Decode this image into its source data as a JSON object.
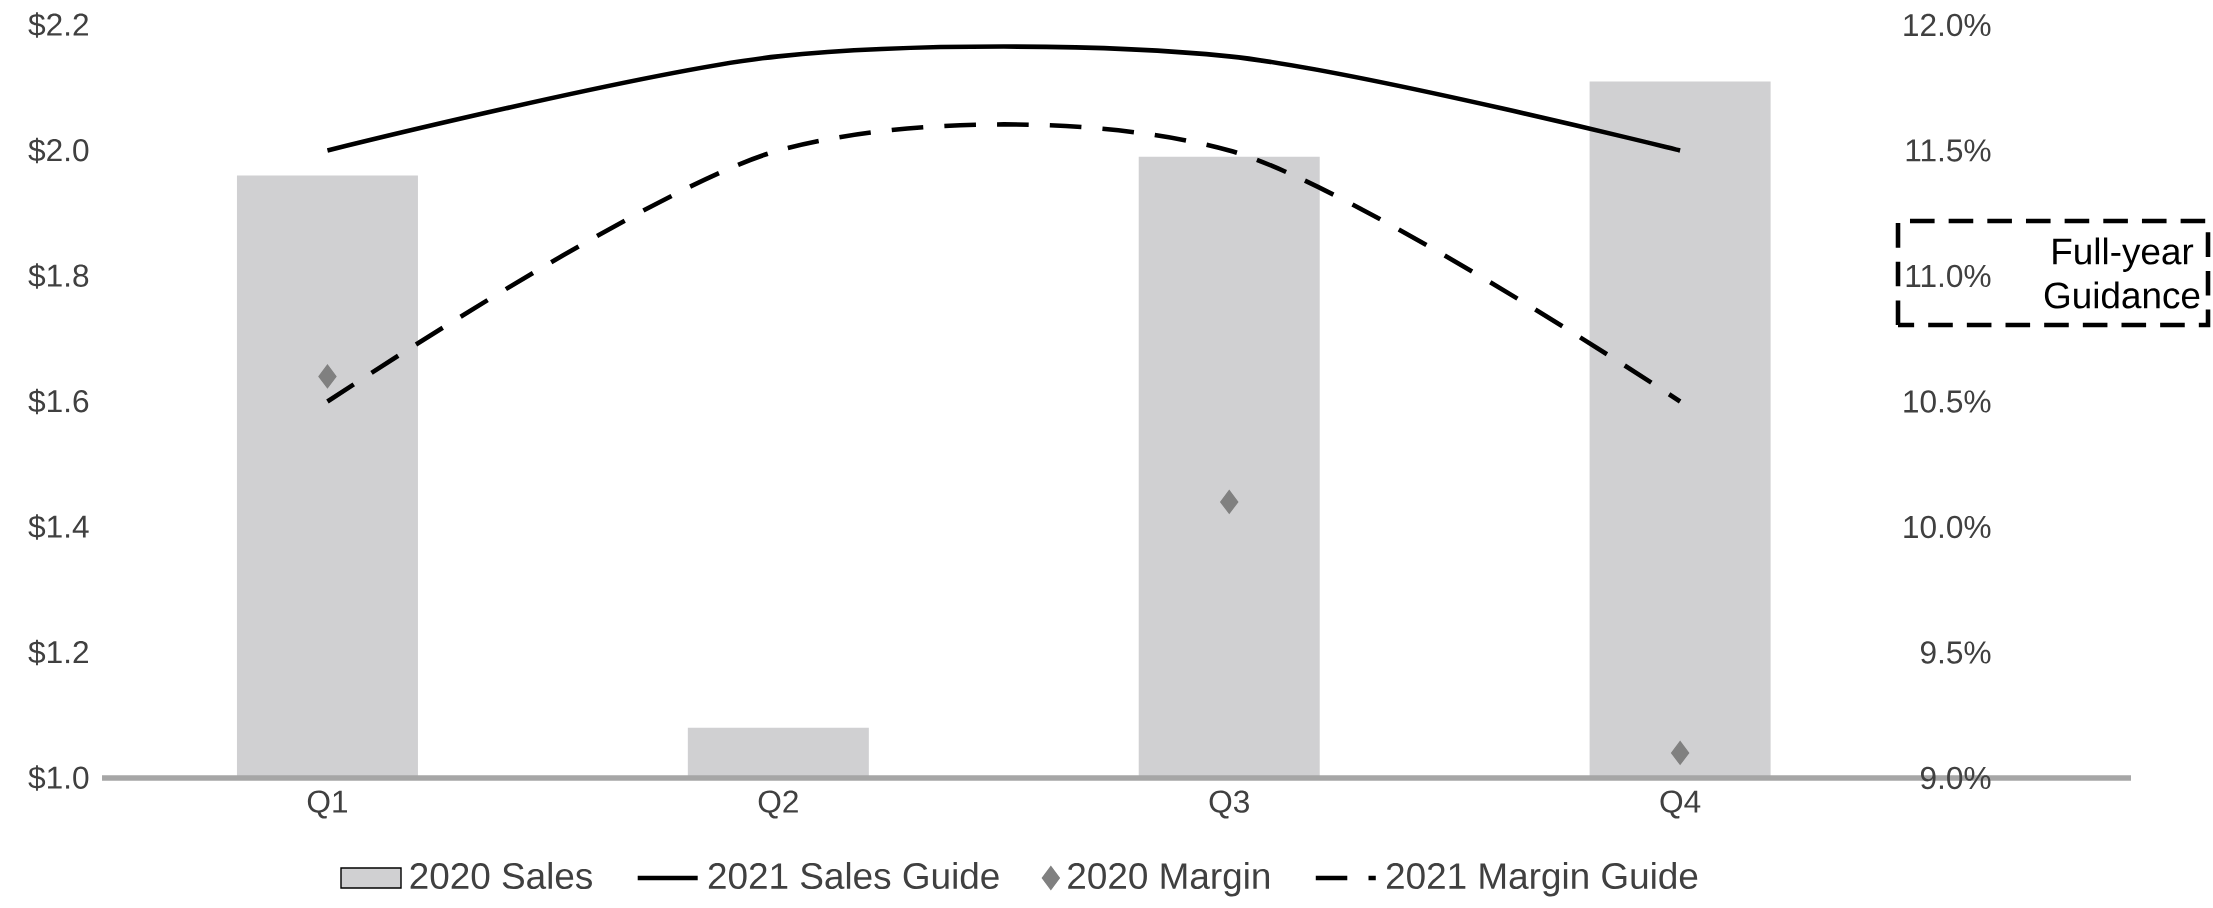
{
  "chart_data": {
    "type": "bar",
    "categories": [
      "Q1",
      "Q2",
      "Q3",
      "Q4"
    ],
    "series": [
      {
        "name": "2020 Sales",
        "color": "#d0d0d2",
        "values": [
          1.96,
          1.08,
          1.99,
          2.11
        ]
      },
      {
        "name": "2021 Sales Guide",
        "type": "line",
        "color": "#000000",
        "line_style": "solid",
        "values": [
          2.0,
          2.15,
          2.15,
          2.0
        ]
      },
      {
        "name": "2020 Margin",
        "type": "scatter",
        "axis": "y2",
        "color": "#808080",
        "marker": "diamond",
        "values": [
          10.6,
          null,
          10.1,
          9.1
        ]
      },
      {
        "name": "2021 Margin Guide",
        "type": "line",
        "axis": "y2",
        "color": "#000000",
        "line_style": "dashed",
        "values": [
          10.5,
          11.5,
          11.5,
          10.5
        ]
      }
    ],
    "ylim": [
      1.0,
      2.2
    ],
    "yticks": [
      {
        "value": 1.0,
        "label": "$1.0"
      },
      {
        "value": 1.2,
        "label": "$1.2"
      },
      {
        "value": 1.4,
        "label": "$1.4"
      },
      {
        "value": 1.6,
        "label": "$1.6"
      },
      {
        "value": 1.8,
        "label": "$1.8"
      },
      {
        "value": 2.0,
        "label": "$2.0"
      },
      {
        "value": 2.2,
        "label": "$2.2"
      }
    ],
    "y2lim": [
      9.0,
      12.0
    ],
    "y2ticks": [
      {
        "value": 9.0,
        "label": "9.0%"
      },
      {
        "value": 9.5,
        "label": "9.5%"
      },
      {
        "value": 10.0,
        "label": "10.0%"
      },
      {
        "value": 10.5,
        "label": "10.5%"
      },
      {
        "value": 11.0,
        "label": "11.0%"
      },
      {
        "value": 11.5,
        "label": "11.5%"
      },
      {
        "value": 12.0,
        "label": "12.0%"
      }
    ],
    "legend": "bottom",
    "annotations": [
      "Full-year Guidance"
    ]
  }
}
